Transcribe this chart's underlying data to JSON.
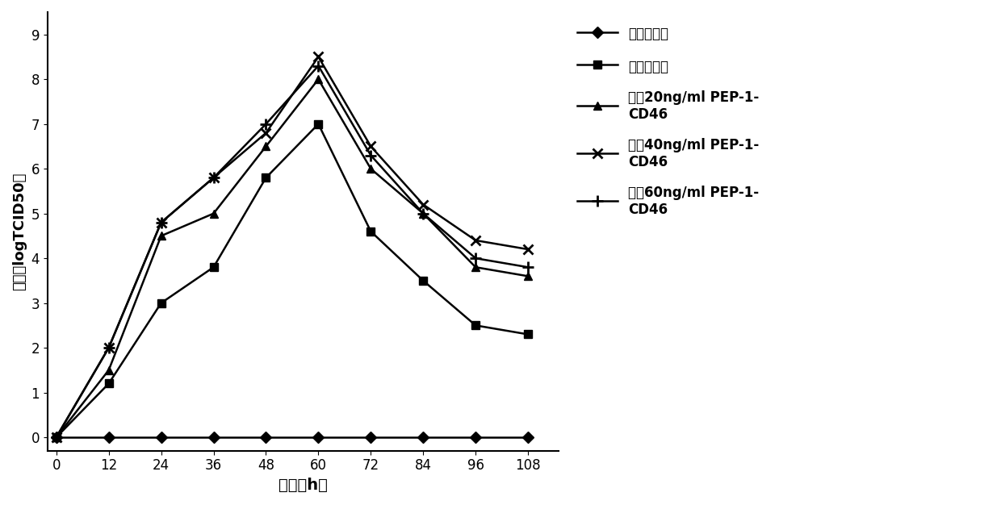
{
  "x": [
    0,
    12,
    24,
    36,
    48,
    60,
    72,
    84,
    96,
    108
  ],
  "cell_control": [
    0,
    0,
    0,
    0,
    0,
    0,
    0,
    0,
    0,
    0
  ],
  "virus_control": [
    0,
    1.2,
    3.0,
    3.8,
    5.8,
    7.0,
    4.6,
    3.5,
    2.5,
    2.3
  ],
  "pep20": [
    0,
    1.5,
    4.5,
    5.0,
    6.5,
    8.0,
    6.0,
    5.0,
    3.8,
    3.6
  ],
  "pep40": [
    0,
    2.0,
    4.8,
    5.8,
    6.8,
    8.5,
    6.5,
    5.2,
    4.4,
    4.2
  ],
  "pep60": [
    0,
    2.0,
    4.8,
    5.8,
    7.0,
    8.3,
    6.3,
    5.0,
    4.0,
    3.8
  ],
  "xlabel": "时间（h）",
  "ylabel": "滔度（logTCID50）",
  "label_cell": "细胞对照组",
  "label_virus": "病毒对照组",
  "label_20": "添分20ng/ml PEP-1-\nCD46",
  "label_40": "添分40ng/ml PEP-1-\nCD46",
  "label_60": "添分60ng/ml PEP-1-\nCD46",
  "xlim": [
    -2,
    115
  ],
  "ylim": [
    -0.3,
    9.5
  ],
  "xticks": [
    0,
    12,
    24,
    36,
    48,
    60,
    72,
    84,
    96,
    108
  ],
  "yticks": [
    0,
    1,
    2,
    3,
    4,
    5,
    6,
    7,
    8,
    9
  ],
  "color": "#000000",
  "linewidth": 1.8,
  "markersize": 7
}
